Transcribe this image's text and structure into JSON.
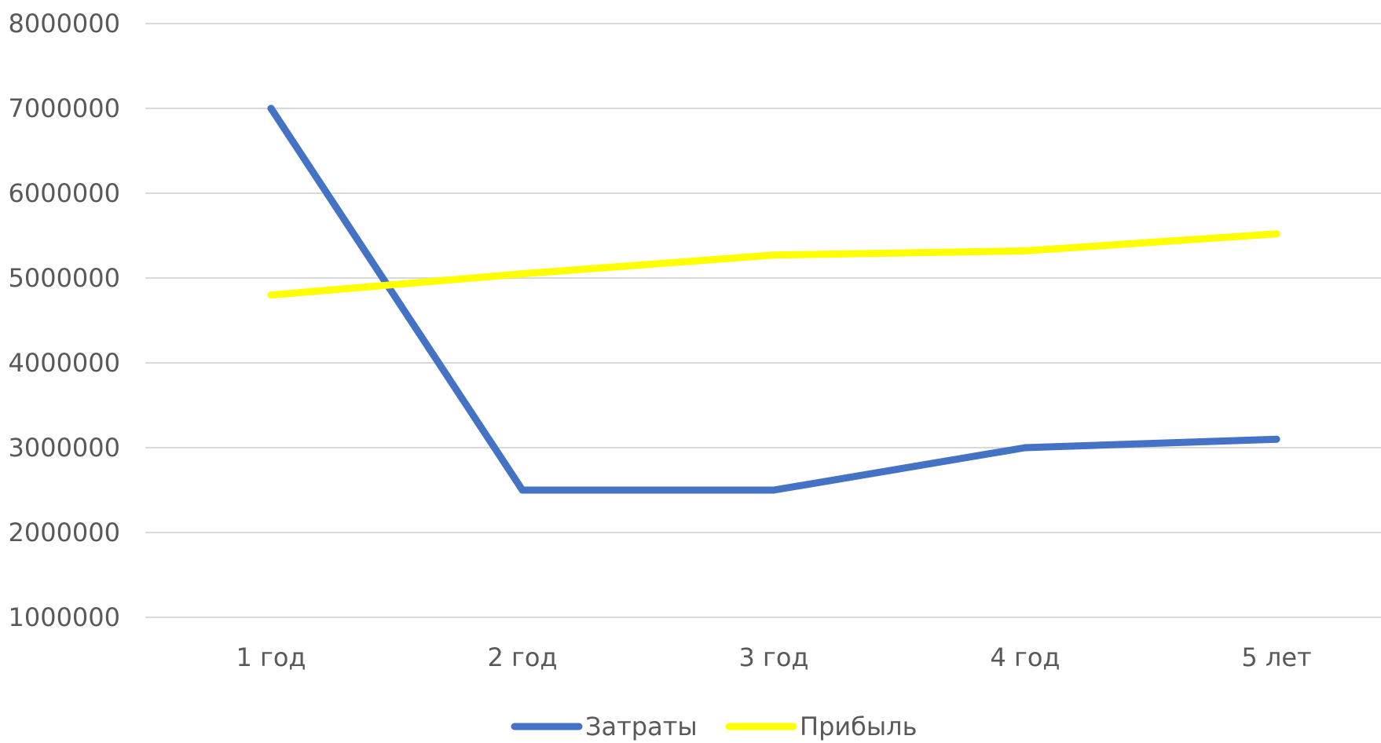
{
  "chart_data": {
    "type": "line",
    "categories": [
      "1 год",
      "2 год",
      "3 год",
      "4 год",
      "5 лет"
    ],
    "series": [
      {
        "name": "Затраты",
        "color": "#4472C4",
        "values": [
          7000000,
          2500000,
          2500000,
          3000000,
          3100000
        ]
      },
      {
        "name": "Прибыль",
        "color": "#FFFF00",
        "values": [
          4800000,
          5050000,
          5270000,
          5320000,
          5520000
        ]
      }
    ],
    "ylim": [
      1000000,
      8000000
    ],
    "yticks": [
      1000000,
      2000000,
      3000000,
      4000000,
      5000000,
      6000000,
      7000000,
      8000000
    ],
    "grid": true,
    "gridColor": "#d9d9d9",
    "legendPosition": "bottom"
  }
}
